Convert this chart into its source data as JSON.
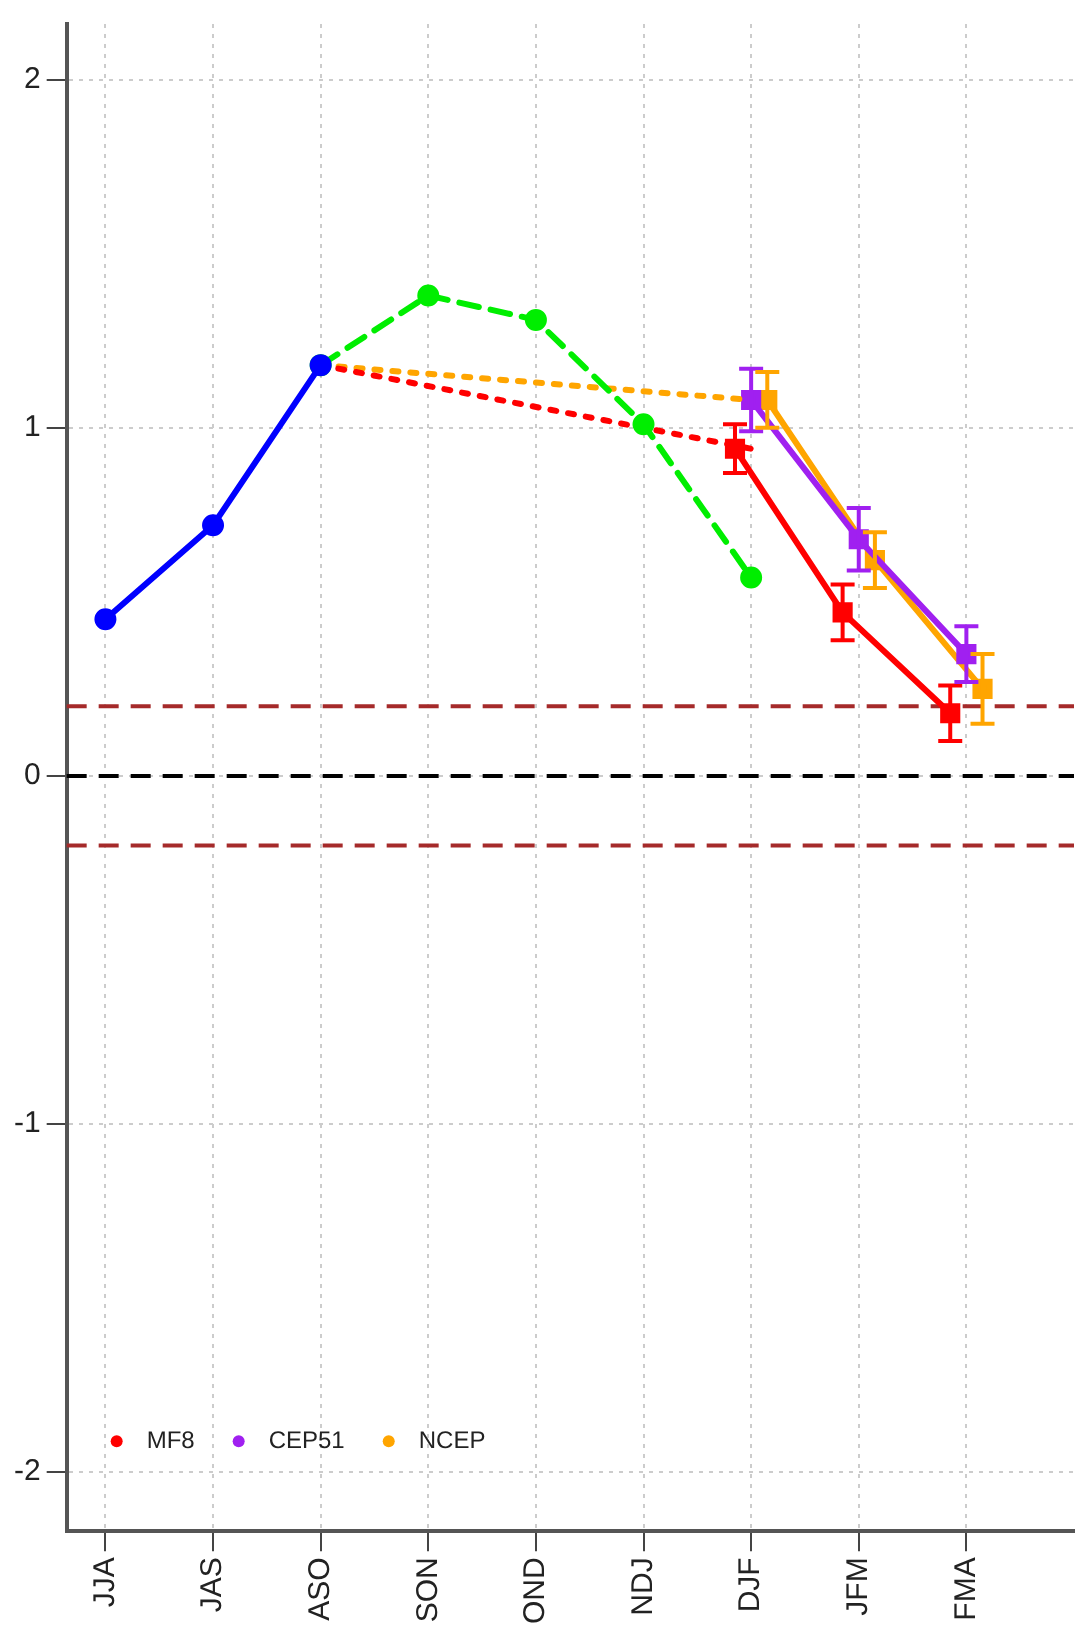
{
  "chart_data": {
    "type": "line",
    "categories": [
      "JJA",
      "JAS",
      "ASO",
      "SON",
      "OND",
      "NDJ",
      "DJF",
      "JFM",
      "FMA"
    ],
    "ylim": [
      -2.17,
      2.16
    ],
    "yticks": [
      -2,
      -1,
      0,
      1,
      2
    ],
    "grid": true,
    "legend": "bottom left",
    "line_style": "solid",
    "series": [
      {
        "color": "#0000ff",
        "marker": "circle",
        "values": [
          0.45,
          0.72,
          1.18,
          null,
          null,
          null,
          null,
          null,
          null
        ]
      },
      {
        "color": "#00ee00",
        "marker": "circle",
        "line_style": "dashed",
        "values": [
          null,
          null,
          1.18,
          1.38,
          1.31,
          1.01,
          0.57,
          null,
          null
        ]
      },
      {
        "color": "#ff0000",
        "marker": "none",
        "line_style": "dotted",
        "values": [
          null,
          null,
          1.18,
          null,
          null,
          null,
          0.94,
          null,
          null
        ]
      },
      {
        "color": "#ffa500",
        "marker": "none",
        "line_style": "dotted",
        "values": [
          null,
          null,
          1.18,
          null,
          null,
          null,
          1.08,
          null,
          null
        ]
      },
      {
        "name": "MF8",
        "color": "#ff0000",
        "marker": "square",
        "values": [
          null,
          null,
          null,
          null,
          null,
          null,
          0.94,
          0.47,
          0.18
        ],
        "errors": [
          null,
          null,
          null,
          null,
          null,
          null,
          0.07,
          0.08,
          0.08
        ]
      },
      {
        "name": "CEP51",
        "color": "#a020f0",
        "marker": "square",
        "values": [
          null,
          null,
          null,
          null,
          null,
          null,
          1.08,
          0.68,
          0.35
        ],
        "errors": [
          null,
          null,
          null,
          null,
          null,
          null,
          0.09,
          0.09,
          0.08
        ]
      },
      {
        "name": "NCEP",
        "color": "#ffa500",
        "marker": "square",
        "values": [
          null,
          null,
          null,
          null,
          null,
          null,
          1.08,
          0.62,
          0.25
        ],
        "errors": [
          null,
          null,
          null,
          null,
          null,
          null,
          0.08,
          0.08,
          0.1
        ]
      }
    ],
    "ref_lines": [
      {
        "axis": "y",
        "value": 0,
        "color": "#000000",
        "line_style": "dashed"
      },
      {
        "axis": "y",
        "value": 0.2,
        "color": "#a52a2a",
        "line_style": "dashed"
      },
      {
        "axis": "y",
        "value": -0.2,
        "color": "#a52a2a",
        "line_style": "dashed"
      }
    ]
  }
}
